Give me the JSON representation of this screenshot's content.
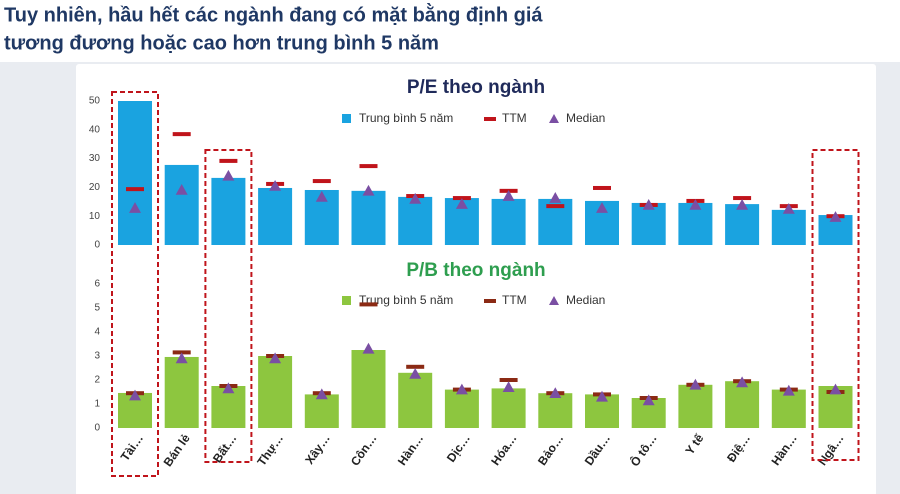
{
  "header": {
    "title_lines": [
      "Tuy nhiên, hầu hết các ngành đang có mặt bằng định giá",
      "tương đương hoặc cao hơn trung bình 5 năm"
    ]
  },
  "chart_data": [
    {
      "type": "bar",
      "title": "P/E theo ngành",
      "title_color": "#1f2a5a",
      "ylim": [
        0,
        50
      ],
      "yticks": [
        0,
        10,
        20,
        30,
        40,
        50
      ],
      "series": [
        {
          "name": "Trung bình 5 năm",
          "mark": "bar",
          "color": "#1aa3e0",
          "values": [
            50,
            27.8,
            23.3,
            19.8,
            19.1,
            18.8,
            16.7,
            16.3,
            16,
            16,
            15.3,
            14.6,
            14.6,
            14.2,
            12.2,
            10.4
          ]
        },
        {
          "name": "TTM",
          "mark": "dash",
          "color": "#c0141b",
          "values": [
            19.4,
            38.5,
            29.2,
            21.2,
            22.2,
            27.4,
            17,
            16.3,
            18.8,
            13.5,
            19.8,
            13.9,
            15.3,
            16.3,
            13.5,
            10
          ]
        },
        {
          "name": "Median",
          "mark": "triangle",
          "color": "#7a4fa3",
          "values": [
            12.8,
            19.1,
            24,
            20.5,
            16.7,
            18.8,
            16,
            14.2,
            17,
            16.3,
            12.8,
            13.9,
            13.9,
            13.9,
            12.5,
            9.7
          ]
        }
      ]
    },
    {
      "type": "bar",
      "title": "P/B theo ngành",
      "title_color": "#2e9e4f",
      "categories": [
        "Tài…",
        "Bán lẻ",
        "Bất…",
        "Thự…",
        "Xây…",
        "Côn…",
        "Hàn…",
        "Dịc…",
        "Hóa…",
        "Bảo…",
        "Dầu…",
        "Ô tô…",
        "Y tế",
        "Điệ…",
        "Hàn…",
        "Ngâ…"
      ],
      "ylim": [
        0,
        6
      ],
      "yticks": [
        0,
        1,
        2,
        3,
        4,
        5,
        6
      ],
      "series": [
        {
          "name": "Trung bình 5 năm",
          "mark": "bar",
          "color": "#8dc63f",
          "values": [
            1.46,
            2.96,
            1.75,
            3,
            1.4,
            3.25,
            2.3,
            1.6,
            1.65,
            1.45,
            1.4,
            1.25,
            1.8,
            1.95,
            1.6,
            1.75
          ]
        },
        {
          "name": "TTM",
          "mark": "dash",
          "color": "#8b2a14",
          "values": [
            1.45,
            3.15,
            1.75,
            3,
            1.45,
            5.15,
            2.55,
            1.6,
            2,
            1.45,
            1.4,
            1.25,
            1.8,
            1.95,
            1.6,
            1.5
          ]
        },
        {
          "name": "Median",
          "mark": "triangle",
          "color": "#7a4fa3",
          "values": [
            1.35,
            2.9,
            1.65,
            2.9,
            1.4,
            3.3,
            2.25,
            1.6,
            1.7,
            1.45,
            1.3,
            1.15,
            1.8,
            1.9,
            1.55,
            1.6
          ]
        }
      ]
    }
  ]
}
